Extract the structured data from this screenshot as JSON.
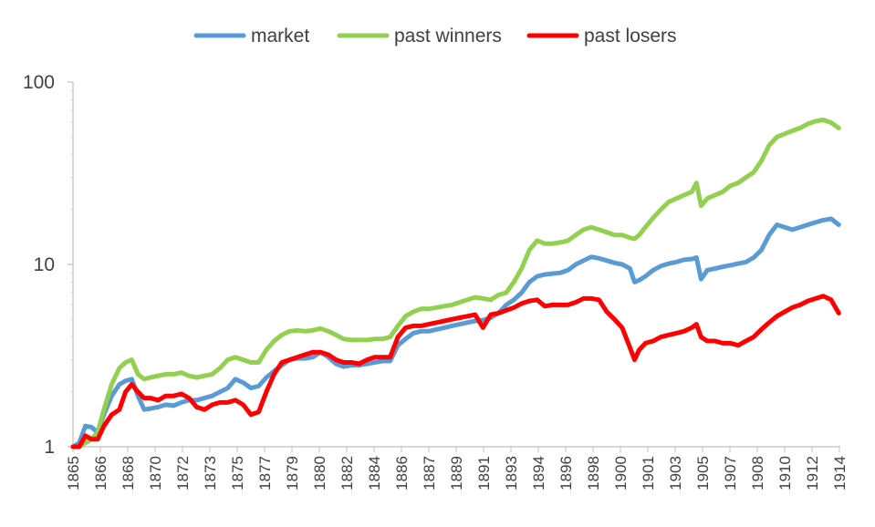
{
  "chart_data": {
    "type": "line",
    "title": "",
    "xlabel": "",
    "ylabel": "",
    "y_scale": "log",
    "ylim": [
      1,
      100
    ],
    "y_ticks": [
      "1",
      "10",
      "100"
    ],
    "xlim": [
      1865.0,
      1914.6
    ],
    "x_tick_labels": [
      "1865",
      "1866",
      "1868",
      "1870",
      "1872",
      "1873",
      "1875",
      "1877",
      "1879",
      "1880",
      "1882",
      "1884",
      "1886",
      "1887",
      "1889",
      "1891",
      "1893",
      "1894",
      "1896",
      "1898",
      "1900",
      "1901",
      "1903",
      "1905",
      "1907",
      "1908",
      "1910",
      "1912",
      "1914"
    ],
    "legend_position": "top",
    "grid": false,
    "series": [
      {
        "name": "market",
        "color": "#5B9BD5",
        "x": [
          1865.0,
          1865.4,
          1865.8,
          1866.2,
          1866.6,
          1867.0,
          1867.5,
          1868.0,
          1868.4,
          1868.8,
          1869.2,
          1869.6,
          1870.0,
          1870.5,
          1871.0,
          1871.5,
          1872.0,
          1872.5,
          1873.0,
          1873.5,
          1874.0,
          1874.5,
          1875.0,
          1875.5,
          1876.0,
          1876.5,
          1877.0,
          1877.5,
          1878.0,
          1878.5,
          1879.0,
          1879.5,
          1880.0,
          1880.5,
          1881.0,
          1881.5,
          1882.0,
          1882.5,
          1883.0,
          1883.5,
          1884.0,
          1884.5,
          1885.0,
          1885.5,
          1886.0,
          1886.5,
          1887.0,
          1887.5,
          1888.0,
          1888.5,
          1889.0,
          1889.5,
          1890.0,
          1890.5,
          1891.0,
          1891.5,
          1892.0,
          1892.5,
          1893.0,
          1893.5,
          1894.0,
          1894.5,
          1895.0,
          1895.5,
          1896.0,
          1896.5,
          1897.0,
          1897.5,
          1898.0,
          1898.5,
          1899.0,
          1899.5,
          1900.0,
          1900.5,
          1901.0,
          1901.3,
          1901.6,
          1902.0,
          1902.5,
          1903.0,
          1903.5,
          1904.0,
          1904.5,
          1905.0,
          1905.3,
          1905.6,
          1906.0,
          1906.5,
          1907.0,
          1907.5,
          1908.0,
          1908.5,
          1909.0,
          1909.5,
          1910.0,
          1910.5,
          1911.0,
          1911.5,
          1912.0,
          1912.5,
          1913.0,
          1913.5,
          1914.0,
          1914.5
        ],
        "y": [
          1.0,
          1.05,
          1.3,
          1.28,
          1.2,
          1.5,
          1.9,
          2.2,
          2.3,
          2.35,
          1.9,
          1.6,
          1.62,
          1.65,
          1.7,
          1.68,
          1.75,
          1.8,
          1.8,
          1.85,
          1.9,
          2.0,
          2.1,
          2.35,
          2.25,
          2.1,
          2.15,
          2.4,
          2.6,
          2.8,
          3.0,
          3.05,
          3.05,
          3.1,
          3.3,
          3.1,
          2.85,
          2.75,
          2.8,
          2.8,
          2.85,
          2.9,
          2.95,
          2.95,
          3.6,
          3.9,
          4.2,
          4.3,
          4.3,
          4.4,
          4.5,
          4.6,
          4.7,
          4.8,
          4.9,
          4.95,
          5.1,
          5.4,
          6.0,
          6.4,
          7.0,
          8.0,
          8.6,
          8.8,
          8.9,
          9.0,
          9.3,
          10.0,
          10.5,
          11.0,
          10.8,
          10.5,
          10.2,
          10.0,
          9.5,
          8.0,
          8.2,
          8.6,
          9.3,
          9.8,
          10.1,
          10.3,
          10.6,
          10.7,
          10.9,
          8.3,
          9.3,
          9.5,
          9.7,
          9.9,
          10.1,
          10.3,
          10.9,
          12.0,
          14.5,
          16.5,
          16.0,
          15.5,
          16.0,
          16.5,
          17.0,
          17.5,
          17.8,
          16.5
        ]
      },
      {
        "name": "past winners",
        "color": "#92D050",
        "x": [
          1865.0,
          1865.4,
          1865.8,
          1866.2,
          1866.6,
          1867.0,
          1867.5,
          1868.0,
          1868.4,
          1868.8,
          1869.2,
          1869.6,
          1870.0,
          1870.5,
          1871.0,
          1871.5,
          1872.0,
          1872.5,
          1873.0,
          1873.5,
          1874.0,
          1874.5,
          1875.0,
          1875.5,
          1876.0,
          1876.5,
          1877.0,
          1877.5,
          1878.0,
          1878.5,
          1879.0,
          1879.5,
          1880.0,
          1880.5,
          1881.0,
          1881.5,
          1882.0,
          1882.5,
          1883.0,
          1883.5,
          1884.0,
          1884.5,
          1885.0,
          1885.5,
          1886.0,
          1886.5,
          1887.0,
          1887.5,
          1888.0,
          1888.5,
          1889.0,
          1889.5,
          1890.0,
          1890.5,
          1891.0,
          1891.5,
          1892.0,
          1892.5,
          1893.0,
          1893.5,
          1894.0,
          1894.5,
          1895.0,
          1895.5,
          1896.0,
          1896.5,
          1897.0,
          1897.5,
          1898.0,
          1898.5,
          1899.0,
          1899.5,
          1900.0,
          1900.5,
          1901.0,
          1901.3,
          1901.6,
          1902.0,
          1902.5,
          1903.0,
          1903.5,
          1904.0,
          1904.5,
          1905.0,
          1905.3,
          1905.6,
          1906.0,
          1906.5,
          1907.0,
          1907.5,
          1908.0,
          1908.5,
          1909.0,
          1909.5,
          1910.0,
          1910.5,
          1911.0,
          1911.5,
          1912.0,
          1912.5,
          1913.0,
          1913.5,
          1914.0,
          1914.5
        ],
        "y": [
          1.0,
          1.0,
          1.05,
          1.1,
          1.2,
          1.6,
          2.2,
          2.7,
          2.9,
          3.0,
          2.5,
          2.35,
          2.4,
          2.45,
          2.5,
          2.5,
          2.55,
          2.45,
          2.4,
          2.45,
          2.5,
          2.7,
          3.0,
          3.1,
          3.0,
          2.9,
          2.9,
          3.4,
          3.8,
          4.1,
          4.3,
          4.35,
          4.3,
          4.35,
          4.45,
          4.3,
          4.1,
          3.9,
          3.85,
          3.85,
          3.85,
          3.9,
          3.9,
          4.0,
          4.6,
          5.2,
          5.5,
          5.7,
          5.7,
          5.8,
          5.9,
          6.0,
          6.2,
          6.4,
          6.6,
          6.5,
          6.4,
          6.8,
          7.0,
          8.0,
          9.5,
          12.0,
          13.5,
          13.0,
          13.0,
          13.2,
          13.5,
          14.5,
          15.5,
          16.0,
          15.5,
          15.0,
          14.5,
          14.5,
          14.0,
          13.8,
          14.5,
          16.0,
          18.0,
          20.0,
          22.0,
          23.0,
          24.0,
          25.0,
          28.0,
          21.0,
          23.0,
          24.0,
          25.0,
          27.0,
          28.0,
          30.0,
          32.0,
          37.0,
          45.0,
          50.0,
          52.0,
          54.0,
          56.0,
          59.0,
          61.0,
          62.0,
          60.0,
          56.0
        ]
      },
      {
        "name": "past losers",
        "color": "#FF0000",
        "x": [
          1865.0,
          1865.4,
          1865.8,
          1866.2,
          1866.6,
          1867.0,
          1867.5,
          1868.0,
          1868.4,
          1868.8,
          1869.2,
          1869.6,
          1870.0,
          1870.5,
          1871.0,
          1871.5,
          1872.0,
          1872.5,
          1873.0,
          1873.5,
          1874.0,
          1874.5,
          1875.0,
          1875.5,
          1876.0,
          1876.5,
          1877.0,
          1877.5,
          1878.0,
          1878.5,
          1879.0,
          1879.5,
          1880.0,
          1880.5,
          1881.0,
          1881.5,
          1882.0,
          1882.5,
          1883.0,
          1883.5,
          1884.0,
          1884.5,
          1885.0,
          1885.5,
          1886.0,
          1886.5,
          1887.0,
          1887.5,
          1888.0,
          1888.5,
          1889.0,
          1889.5,
          1890.0,
          1890.5,
          1891.0,
          1891.5,
          1892.0,
          1892.5,
          1893.0,
          1893.5,
          1894.0,
          1894.5,
          1895.0,
          1895.5,
          1896.0,
          1896.5,
          1897.0,
          1897.5,
          1898.0,
          1898.5,
          1899.0,
          1899.5,
          1900.0,
          1900.5,
          1901.0,
          1901.3,
          1901.6,
          1902.0,
          1902.5,
          1903.0,
          1903.5,
          1904.0,
          1904.5,
          1905.0,
          1905.3,
          1905.6,
          1906.0,
          1906.5,
          1907.0,
          1907.5,
          1908.0,
          1908.5,
          1909.0,
          1909.5,
          1910.0,
          1910.5,
          1911.0,
          1911.5,
          1912.0,
          1912.5,
          1913.0,
          1913.5,
          1914.0,
          1914.5
        ],
        "y": [
          1.0,
          1.0,
          1.15,
          1.1,
          1.1,
          1.3,
          1.5,
          1.6,
          2.0,
          2.2,
          2.0,
          1.85,
          1.85,
          1.8,
          1.9,
          1.9,
          1.95,
          1.85,
          1.65,
          1.6,
          1.7,
          1.75,
          1.75,
          1.8,
          1.7,
          1.5,
          1.55,
          2.0,
          2.5,
          2.9,
          3.0,
          3.1,
          3.2,
          3.3,
          3.3,
          3.2,
          3.0,
          2.9,
          2.9,
          2.85,
          3.0,
          3.1,
          3.1,
          3.1,
          4.0,
          4.5,
          4.6,
          4.6,
          4.7,
          4.8,
          4.9,
          5.0,
          5.1,
          5.2,
          5.3,
          4.5,
          5.3,
          5.4,
          5.6,
          5.8,
          6.1,
          6.3,
          6.4,
          5.9,
          6.0,
          6.0,
          6.0,
          6.2,
          6.5,
          6.5,
          6.4,
          5.5,
          5.0,
          4.5,
          3.5,
          3.0,
          3.4,
          3.7,
          3.8,
          4.0,
          4.1,
          4.2,
          4.3,
          4.5,
          4.7,
          4.0,
          3.8,
          3.8,
          3.7,
          3.7,
          3.6,
          3.8,
          4.0,
          4.4,
          4.8,
          5.2,
          5.5,
          5.8,
          6.0,
          6.3,
          6.5,
          6.7,
          6.4,
          5.4
        ]
      }
    ]
  }
}
